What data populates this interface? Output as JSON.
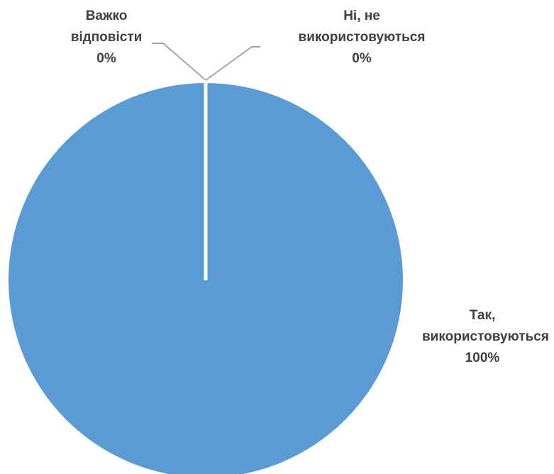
{
  "chart_data": {
    "type": "pie",
    "title": "",
    "slices": [
      {
        "label_lines": [
          "Так,",
          "використовуються"
        ],
        "percent_label": "100%",
        "value": 100,
        "color": "#5B9BD5"
      },
      {
        "label_lines": [
          "Ні, не",
          "використовуються"
        ],
        "percent_label": "0%",
        "value": 0,
        "color": "#5B9BD5"
      },
      {
        "label_lines": [
          "Важко",
          "відповісти"
        ],
        "percent_label": "0%",
        "value": 0,
        "color": "#5B9BD5"
      }
    ],
    "show_legend": false,
    "leader_line_color": "#A6A6A6",
    "slice_border_color": "#FFFFFF"
  }
}
